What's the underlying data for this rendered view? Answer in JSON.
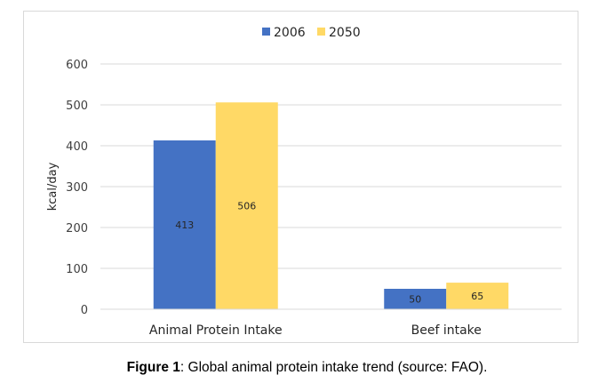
{
  "chart_data": {
    "type": "bar",
    "categories": [
      "Animal Protein Intake",
      "Beef intake"
    ],
    "series": [
      {
        "name": "2006",
        "values": [
          413,
          50
        ],
        "color": "#4472c4"
      },
      {
        "name": "2050",
        "values": [
          506,
          65
        ],
        "color": "#ffd966"
      }
    ],
    "title": "",
    "xlabel": "",
    "ylabel": "kcal/day",
    "ylim": [
      0,
      600
    ],
    "yticks": [
      0,
      100,
      200,
      300,
      400,
      500,
      600
    ],
    "grid": true,
    "legend_position": "top-center",
    "data_labels": true
  },
  "caption": {
    "label": "Figure 1",
    "text": ": Global animal protein intake trend (source: FAO)."
  },
  "colors": {
    "gridline": "#d9d9d9",
    "axis": "#d9d9d9",
    "border": "#d9d9d9"
  }
}
